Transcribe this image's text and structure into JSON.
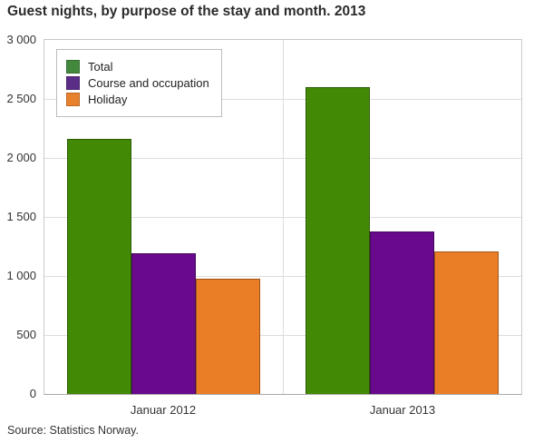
{
  "chart_data": {
    "type": "bar",
    "title": "Guest nights, by purpose of the stay and month. 2013",
    "categories": [
      "Januar 2012",
      "Januar 2013"
    ],
    "series": [
      {
        "name": "Total",
        "color": "#428906",
        "legend_color": "#44883E",
        "values": [
          2165,
          2600
        ]
      },
      {
        "name": "Course and occupation",
        "color": "#690A8C",
        "legend_color": "#5C2D87",
        "values": [
          1195,
          1380
        ]
      },
      {
        "name": "Holiday",
        "color": "#EA7E27",
        "legend_color": "#E8812D",
        "values": [
          975,
          1210
        ]
      }
    ],
    "ylim": [
      0,
      3000
    ],
    "y_tick_step": 500,
    "y_ticks": [
      "3 000",
      "2 500",
      "2 000",
      "1 500",
      "1 000",
      "500",
      "0"
    ],
    "grid": true,
    "legend_position": "top-left",
    "source": "Source: Statistics Norway."
  }
}
